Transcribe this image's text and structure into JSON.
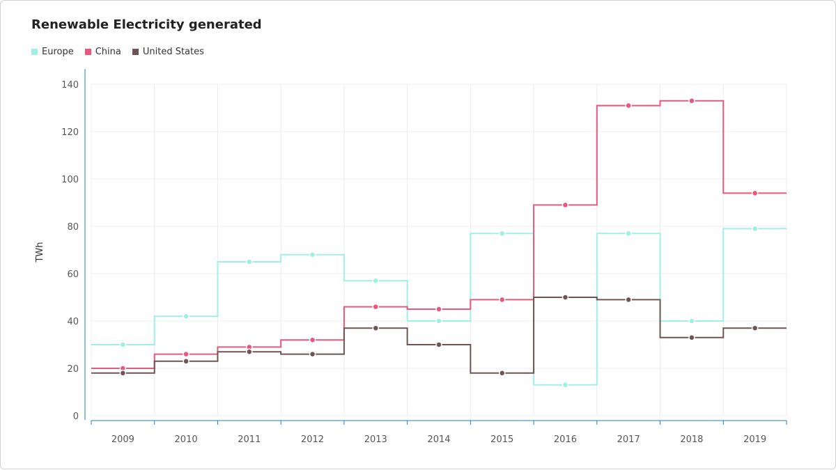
{
  "chart_data": {
    "type": "line",
    "step": true,
    "title": "Renewable Electricity generated",
    "xlabel": "",
    "ylabel": "TWh",
    "ylim": [
      0,
      140
    ],
    "yticks": [
      0,
      20,
      40,
      60,
      80,
      100,
      120,
      140
    ],
    "categories": [
      "2009",
      "2010",
      "2011",
      "2012",
      "2013",
      "2014",
      "2015",
      "2016",
      "2017",
      "2018",
      "2019"
    ],
    "grid": true,
    "legend_position": "top-left",
    "series": [
      {
        "name": "Europe",
        "color": "#9ff0e2",
        "values": [
          30,
          42,
          65,
          68,
          57,
          40,
          77,
          13,
          77,
          40,
          79
        ]
      },
      {
        "name": "China",
        "color": "#e8577c",
        "values": [
          20,
          26,
          29,
          32,
          46,
          45,
          49,
          89,
          131,
          133,
          94
        ]
      },
      {
        "name": "United States",
        "color": "#6f5454",
        "values": [
          18,
          23,
          27,
          26,
          37,
          30,
          18,
          50,
          49,
          33,
          37
        ]
      }
    ]
  }
}
